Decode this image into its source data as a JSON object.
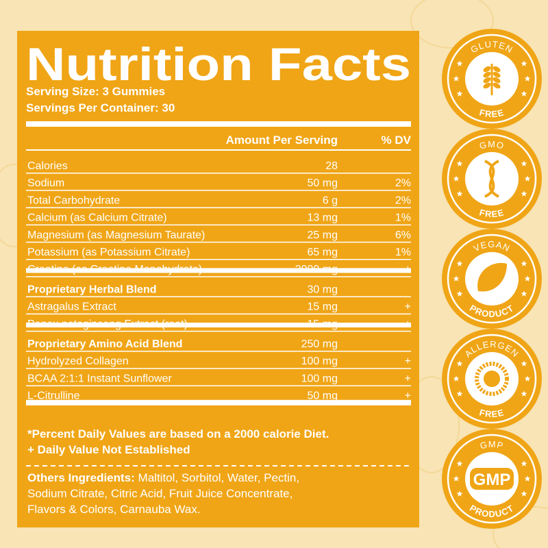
{
  "title": "Nutrition Facts",
  "serving_size": "Serving Size: 3 Gummies",
  "servings_per_container": "Servings Per Container: 30",
  "header": {
    "amount": "Amount Per Serving",
    "dv": "% DV"
  },
  "rows": [
    {
      "name": "Calories",
      "amount": "28"
    },
    {
      "name": "Sodium",
      "amount": "50 mg",
      "dv": "2%"
    },
    {
      "name": "Total Carbohydrate",
      "amount": "6 g",
      "dv": "2%"
    },
    {
      "name": "Calcium (as Calcium Citrate)",
      "amount": "13 mg",
      "dv": "1%"
    },
    {
      "name": "Magnesium (as Magnesium Taurate)",
      "amount": "25 mg",
      "dv": "6%"
    },
    {
      "name": "Potassium (as Potassium Citrate)",
      "amount": "65 mg",
      "dv": "1%"
    },
    {
      "name": "Creatine (as Creatine Monohydrate)",
      "amount": "3000 mg",
      "dv": "+"
    },
    {
      "name": "Proprietary Herbal Blend",
      "amount": "30 mg",
      "bold": true
    },
    {
      "name": "Astragalus Extract",
      "amount": "15 mg",
      "dv": "+"
    },
    {
      "name": "Panax notoginseng Extract (root)",
      "amount": "15 mg",
      "dv": "+"
    },
    {
      "name": "Proprietary Amino Acid Blend",
      "amount": "250 mg",
      "bold": true
    },
    {
      "name": "Hydrolyzed Collagen",
      "amount": "100 mg",
      "dv": "+"
    },
    {
      "name": "BCAA 2:1:1 Instant Sunflower",
      "amount": "100 mg",
      "dv": "+"
    },
    {
      "name": "L-Citrulline",
      "amount": "50 mg",
      "dv": "+"
    }
  ],
  "footnotes": [
    "*Percent Daily Values are based on a 2000 calorie Diet.",
    "+ Daily Value Not Established"
  ],
  "ingredients": {
    "label": "Others Ingredients:",
    "lines": [
      "Maltitol, Sorbitol, Water, Pectin,",
      "Sodium Citrate, Citric Acid, Fruit Juice Concentrate,",
      "Flavors & Colors, Carnauba Wax."
    ]
  },
  "badges": [
    {
      "top": "GLUTEN",
      "bottom": "FREE"
    },
    {
      "top": "GMO",
      "bottom": "FREE"
    },
    {
      "top": "VEGAN",
      "bottom": "PRODUCT"
    },
    {
      "top": "ALLERGEN",
      "bottom": "FREE"
    },
    {
      "top": "GMP",
      "bottom": "PRODUCT",
      "center": "GMP"
    }
  ]
}
